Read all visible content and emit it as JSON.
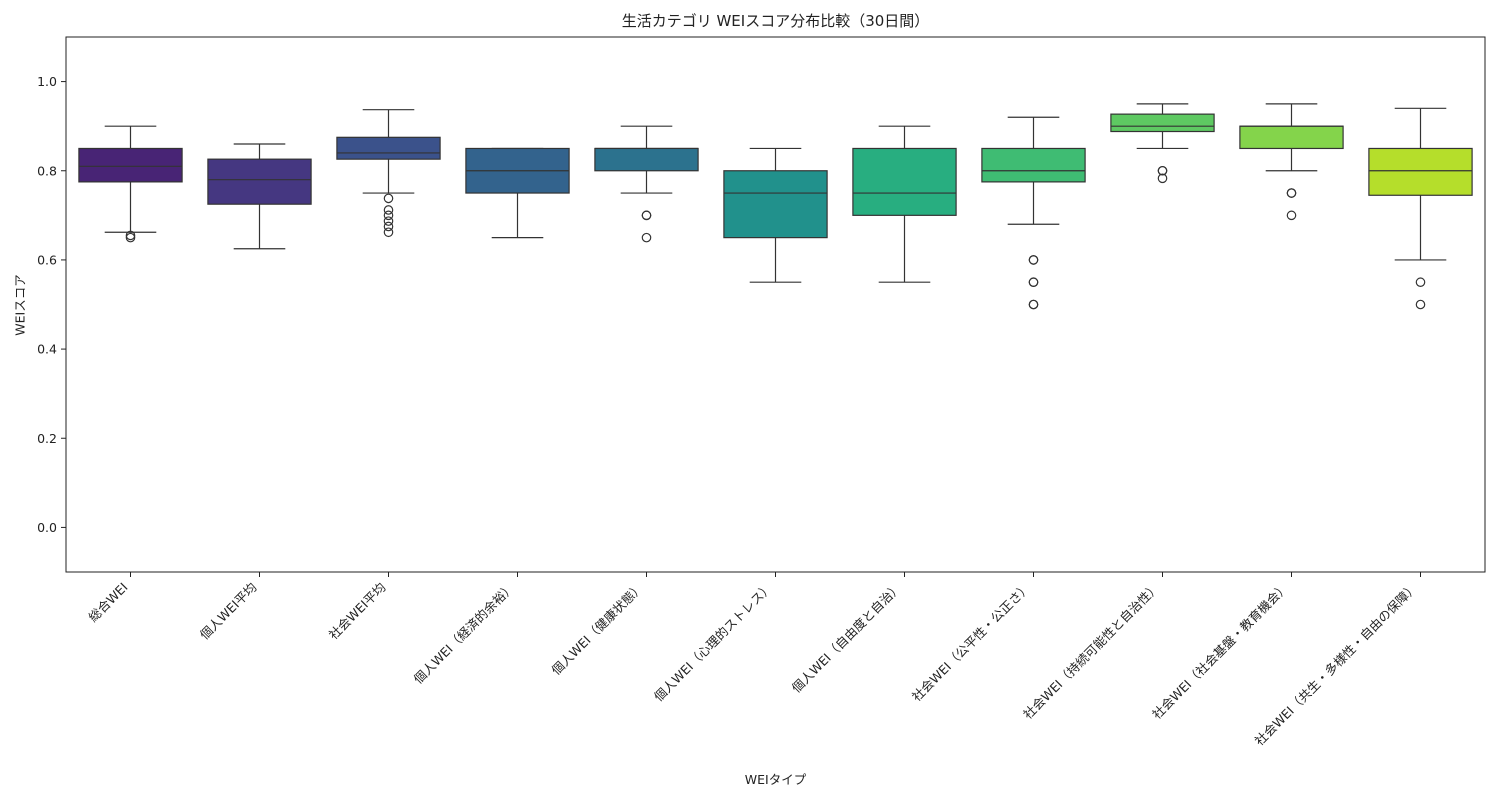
{
  "chart_data": {
    "type": "box",
    "title": "生活カテゴリ WEIスコア分布比較（30日間）",
    "xlabel": "WEIタイプ",
    "ylabel": "WEIスコア",
    "ylim": [
      -0.1,
      1.1
    ],
    "yticks": [
      "0.0",
      "0.2",
      "0.4",
      "0.6",
      "0.8",
      "1.0"
    ],
    "grid": false,
    "categories": [
      {
        "label": "総合WEI",
        "q1": 0.775,
        "median": 0.81,
        "q3": 0.85,
        "whisker_low": 0.662,
        "whisker_high": 0.9,
        "outliers": [
          0.655,
          0.65
        ],
        "color": "#482475"
      },
      {
        "label": "個人WEI平均",
        "q1": 0.725,
        "median": 0.78,
        "q3": 0.826,
        "whisker_low": 0.625,
        "whisker_high": 0.86,
        "outliers": [],
        "color": "#453781"
      },
      {
        "label": "社会WEI平均",
        "q1": 0.826,
        "median": 0.84,
        "q3": 0.875,
        "whisker_low": 0.75,
        "whisker_high": 0.937,
        "outliers": [
          0.738,
          0.712,
          0.7,
          0.687,
          0.675,
          0.662
        ],
        "color": "#3b528b"
      },
      {
        "label": "個人WEI（経済的余裕）",
        "q1": 0.75,
        "median": 0.8,
        "q3": 0.85,
        "whisker_low": 0.65,
        "whisker_high": 0.85,
        "outliers": [],
        "color": "#33638d"
      },
      {
        "label": "個人WEI（健康状態）",
        "q1": 0.8,
        "median": 0.85,
        "q3": 0.85,
        "whisker_low": 0.75,
        "whisker_high": 0.9,
        "outliers": [
          0.7,
          0.7,
          0.65
        ],
        "color": "#2c728e"
      },
      {
        "label": "個人WEI（心理的ストレス）",
        "q1": 0.65,
        "median": 0.75,
        "q3": 0.8,
        "whisker_low": 0.55,
        "whisker_high": 0.85,
        "outliers": [],
        "color": "#21918c"
      },
      {
        "label": "個人WEI（自由度と自治）",
        "q1": 0.7,
        "median": 0.75,
        "q3": 0.85,
        "whisker_low": 0.55,
        "whisker_high": 0.9,
        "outliers": [],
        "color": "#28ae80"
      },
      {
        "label": "社会WEI（公平性・公正さ）",
        "q1": 0.775,
        "median": 0.8,
        "q3": 0.85,
        "whisker_low": 0.68,
        "whisker_high": 0.92,
        "outliers": [
          0.6,
          0.6,
          0.55,
          0.55,
          0.5,
          0.5
        ],
        "color": "#3fbc73"
      },
      {
        "label": "社会WEI（持続可能性と自治性）",
        "q1": 0.888,
        "median": 0.9,
        "q3": 0.927,
        "whisker_low": 0.85,
        "whisker_high": 0.95,
        "outliers": [
          0.8,
          0.8,
          0.783
        ],
        "color": "#5ec962"
      },
      {
        "label": "社会WEI（社会基盤・教育機会）",
        "q1": 0.85,
        "median": 0.9,
        "q3": 0.9,
        "whisker_low": 0.8,
        "whisker_high": 0.95,
        "outliers": [
          0.75,
          0.75,
          0.7
        ],
        "color": "#84d44b"
      },
      {
        "label": "社会WEI（共生・多様性・自由の保障）",
        "q1": 0.745,
        "median": 0.8,
        "q3": 0.85,
        "whisker_low": 0.6,
        "whisker_high": 0.94,
        "outliers": [
          0.55,
          0.5
        ],
        "color": "#b5de2b"
      }
    ]
  }
}
